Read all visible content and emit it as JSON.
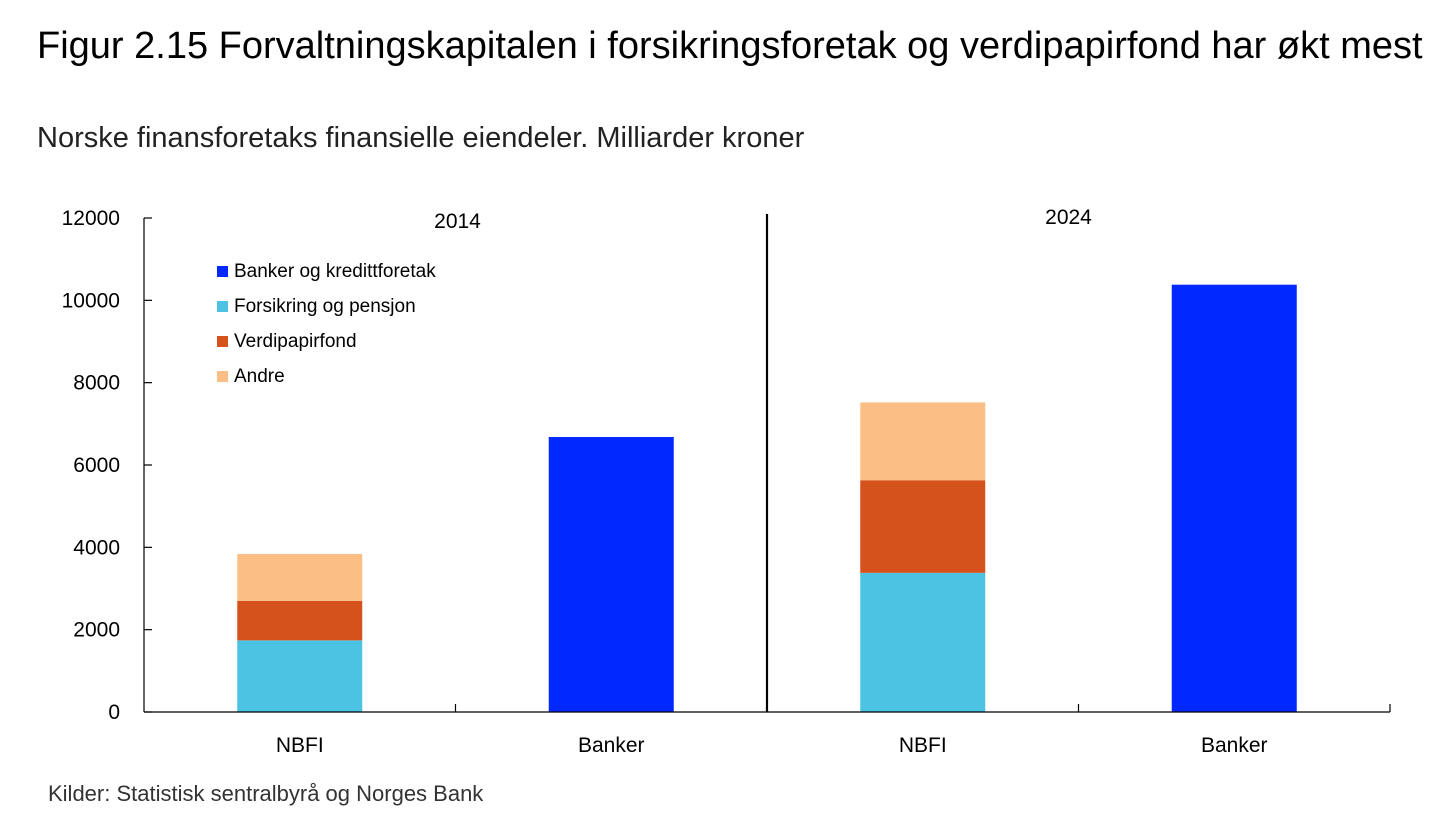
{
  "title": "Figur 2.15 Forvaltningskapitalen i forsikringsforetak og verdipapirfond har økt mest",
  "subtitle": "Norske finansforetaks finansielle eiendeler. Milliarder kroner",
  "source": "Kilder: Statistisk sentralbyrå og Norges Bank",
  "colors": {
    "banker": "#0028ff",
    "forsikring": "#4cc3e3",
    "verdipapirfond": "#d6521c",
    "andre": "#fbbf85"
  },
  "chart_data": {
    "type": "bar",
    "stacked": true,
    "groups": [
      "2014",
      "2024"
    ],
    "categories": [
      "NBFI",
      "Banker",
      "NBFI",
      "Banker"
    ],
    "category_groups": [
      "2014",
      "2014",
      "2024",
      "2024"
    ],
    "series": [
      {
        "name": "Banker og kredittforetak",
        "key": "banker",
        "values": [
          0,
          6680,
          0,
          10380
        ]
      },
      {
        "name": "Forsikring og pensjon",
        "key": "forsikring",
        "values": [
          1740,
          0,
          3380,
          0
        ]
      },
      {
        "name": "Verdipapirfond",
        "key": "verdipapirfond",
        "values": [
          960,
          0,
          2250,
          0
        ]
      },
      {
        "name": "Andre",
        "key": "andre",
        "values": [
          1140,
          0,
          1890,
          0
        ]
      }
    ],
    "yticks": [
      "0",
      "2000",
      "4000",
      "6000",
      "8000",
      "10000",
      "12000"
    ],
    "ylim": [
      0,
      12000
    ],
    "legend_position": "top-left",
    "grid": false
  }
}
